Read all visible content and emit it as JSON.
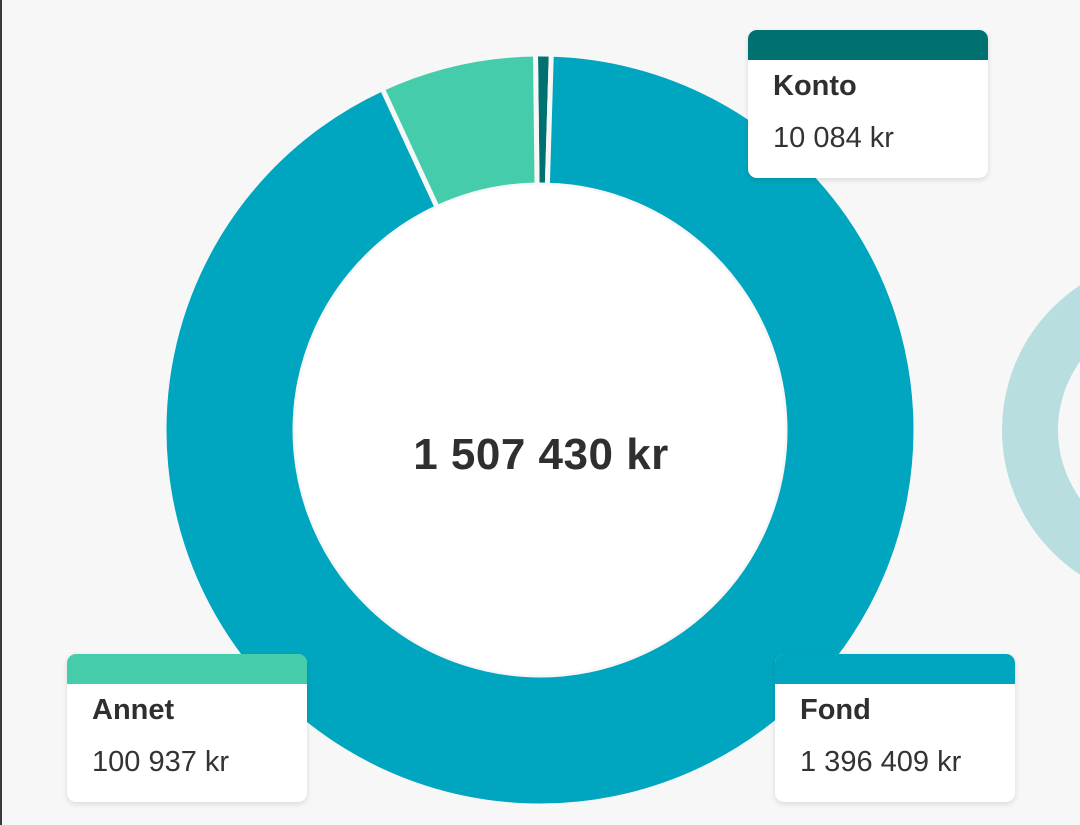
{
  "colors": {
    "konto": "#007170",
    "annet": "#45cdab",
    "fond": "#00a6bf",
    "background": "#f7f7f7",
    "neighbor_chart": "#b8dedf"
  },
  "chart_data": {
    "type": "pie",
    "donut": true,
    "center_label": "1 507 430 kr",
    "total": 1507430,
    "unit": "kr",
    "slices": [
      {
        "key": "konto",
        "label": "Konto",
        "value": 10084,
        "display": "10 084 kr"
      },
      {
        "key": "fond",
        "label": "Fond",
        "value": 1396409,
        "display": "1 396 409 kr"
      },
      {
        "key": "annet",
        "label": "Annet",
        "value": 100937,
        "display": "100 937 kr"
      }
    ]
  }
}
